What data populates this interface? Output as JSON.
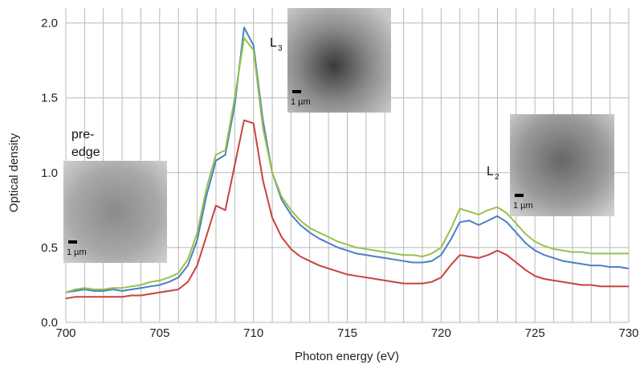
{
  "chart_data": {
    "type": "line",
    "x_label": "Photon energy (eV)",
    "y_label": "Optical density",
    "x": [
      700,
      700.5,
      701,
      701.5,
      702,
      702.5,
      703,
      703.5,
      704,
      704.5,
      705,
      705.5,
      706,
      706.5,
      707,
      707.5,
      708,
      708.5,
      709,
      709.5,
      710,
      710.5,
      711,
      711.5,
      712,
      712.5,
      713,
      713.5,
      714,
      714.5,
      715,
      715.5,
      716,
      716.5,
      717,
      717.5,
      718,
      718.5,
      719,
      719.5,
      720,
      720.5,
      721,
      721.5,
      722,
      722.5,
      723,
      723.5,
      724,
      724.5,
      725,
      725.5,
      726,
      726.5,
      727,
      727.5,
      728,
      728.5,
      729,
      729.5,
      730
    ],
    "series": [
      {
        "color": "#4a7fc4",
        "values": [
          0.2,
          0.21,
          0.22,
          0.21,
          0.21,
          0.22,
          0.21,
          0.22,
          0.23,
          0.24,
          0.25,
          0.27,
          0.3,
          0.38,
          0.55,
          0.85,
          1.08,
          1.12,
          1.45,
          1.97,
          1.85,
          1.35,
          1.0,
          0.82,
          0.72,
          0.65,
          0.6,
          0.56,
          0.53,
          0.5,
          0.48,
          0.46,
          0.45,
          0.44,
          0.43,
          0.42,
          0.41,
          0.4,
          0.4,
          0.41,
          0.45,
          0.55,
          0.67,
          0.68,
          0.65,
          0.68,
          0.71,
          0.67,
          0.6,
          0.53,
          0.48,
          0.45,
          0.43,
          0.41,
          0.4,
          0.39,
          0.38,
          0.38,
          0.37,
          0.37,
          0.36
        ]
      },
      {
        "color": "#97c14a",
        "values": [
          0.2,
          0.22,
          0.23,
          0.22,
          0.22,
          0.23,
          0.23,
          0.24,
          0.25,
          0.27,
          0.28,
          0.3,
          0.33,
          0.42,
          0.6,
          0.9,
          1.12,
          1.15,
          1.5,
          1.9,
          1.82,
          1.3,
          1.0,
          0.84,
          0.75,
          0.68,
          0.63,
          0.6,
          0.57,
          0.54,
          0.52,
          0.5,
          0.49,
          0.48,
          0.47,
          0.46,
          0.45,
          0.45,
          0.44,
          0.46,
          0.5,
          0.62,
          0.76,
          0.74,
          0.72,
          0.75,
          0.77,
          0.73,
          0.66,
          0.59,
          0.54,
          0.51,
          0.49,
          0.48,
          0.47,
          0.47,
          0.46,
          0.46,
          0.46,
          0.46,
          0.46
        ]
      },
      {
        "color": "#c9423c",
        "values": [
          0.16,
          0.17,
          0.17,
          0.17,
          0.17,
          0.17,
          0.17,
          0.18,
          0.18,
          0.19,
          0.2,
          0.21,
          0.22,
          0.27,
          0.38,
          0.58,
          0.78,
          0.75,
          1.05,
          1.35,
          1.33,
          0.95,
          0.7,
          0.57,
          0.49,
          0.44,
          0.41,
          0.38,
          0.36,
          0.34,
          0.32,
          0.31,
          0.3,
          0.29,
          0.28,
          0.27,
          0.26,
          0.26,
          0.26,
          0.27,
          0.3,
          0.38,
          0.45,
          0.44,
          0.43,
          0.45,
          0.48,
          0.45,
          0.4,
          0.35,
          0.31,
          0.29,
          0.28,
          0.27,
          0.26,
          0.25,
          0.25,
          0.24,
          0.24,
          0.24,
          0.24
        ]
      }
    ],
    "xlim": [
      700,
      730
    ],
    "ylim": [
      0,
      2.1
    ],
    "xticks": [
      700,
      705,
      710,
      715,
      720,
      725,
      730
    ],
    "x_minor_grid": [
      701,
      702,
      703,
      704,
      706,
      707,
      708,
      709,
      711,
      712,
      713,
      714,
      716,
      717,
      718,
      719,
      721,
      722,
      723,
      724,
      726,
      727,
      728,
      729
    ],
    "yticks": [
      {
        "value": 0,
        "label": "0.0"
      },
      0.5,
      {
        "value": 1,
        "label": "1.0"
      },
      1.5,
      {
        "value": 2,
        "label": "2.0"
      }
    ],
    "grid": true,
    "annotations": [
      {
        "lines": [
          "pre-",
          "edge"
        ]
      },
      {
        "text": "L",
        "sub": "3"
      },
      {
        "text": "L",
        "sub": "2"
      }
    ],
    "insets": [
      {
        "scale_label": "1 µm"
      },
      {
        "scale_label": "1 µm"
      },
      {
        "scale_label": "1 µm"
      }
    ]
  }
}
